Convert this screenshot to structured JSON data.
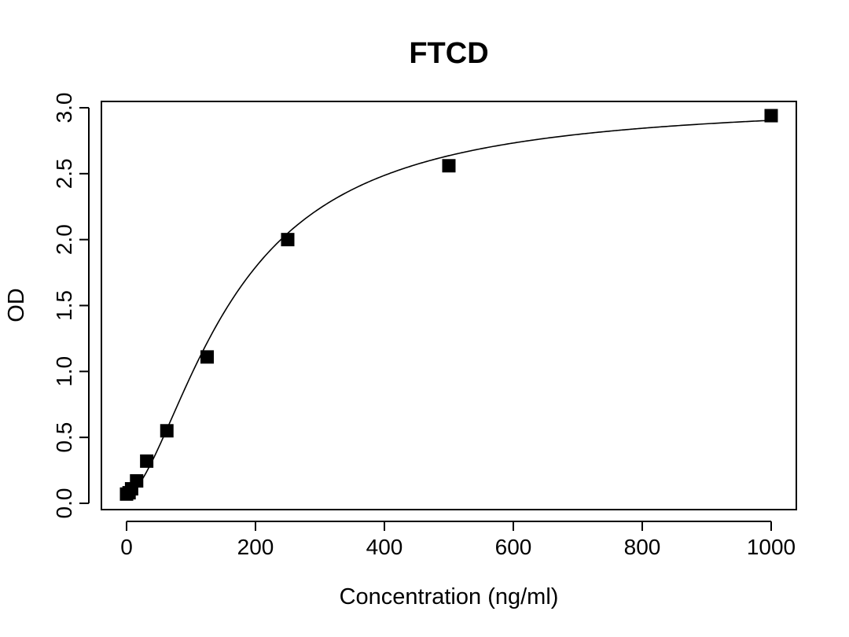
{
  "chart_data": {
    "type": "scatter",
    "title": "FTCD",
    "xlabel": "Concentration (ng/ml)",
    "ylabel": "OD",
    "xlim": [
      0,
      1000
    ],
    "ylim": [
      0,
      3
    ],
    "x_ticks": [
      0,
      200,
      400,
      600,
      800,
      1000
    ],
    "y_ticks": [
      0.0,
      0.5,
      1.0,
      1.5,
      2.0,
      2.5,
      3.0
    ],
    "x_tick_labels": [
      "0",
      "200",
      "400",
      "600",
      "800",
      "1000"
    ],
    "y_tick_labels": [
      "0.0",
      "0.5",
      "1.0",
      "1.5",
      "2.0",
      "2.5",
      "3.0"
    ],
    "grid": false,
    "marker": "filled-square",
    "color": "#000000",
    "series": [
      {
        "points": [
          {
            "x": 0,
            "y": 0.07
          },
          {
            "x": 3.9,
            "y": 0.08
          },
          {
            "x": 7.8,
            "y": 0.11
          },
          {
            "x": 15.6,
            "y": 0.17
          },
          {
            "x": 31.25,
            "y": 0.32
          },
          {
            "x": 62.5,
            "y": 0.55
          },
          {
            "x": 125,
            "y": 1.11
          },
          {
            "x": 250,
            "y": 2.0
          },
          {
            "x": 500,
            "y": 2.56
          },
          {
            "x": 1000,
            "y": 2.94
          }
        ]
      }
    ],
    "fit_curve": {
      "type": "4-parameter logistic",
      "min": 0.06,
      "max": 3.05,
      "ec50": 165,
      "hill": 1.65,
      "domain": [
        0,
        1000
      ]
    }
  }
}
